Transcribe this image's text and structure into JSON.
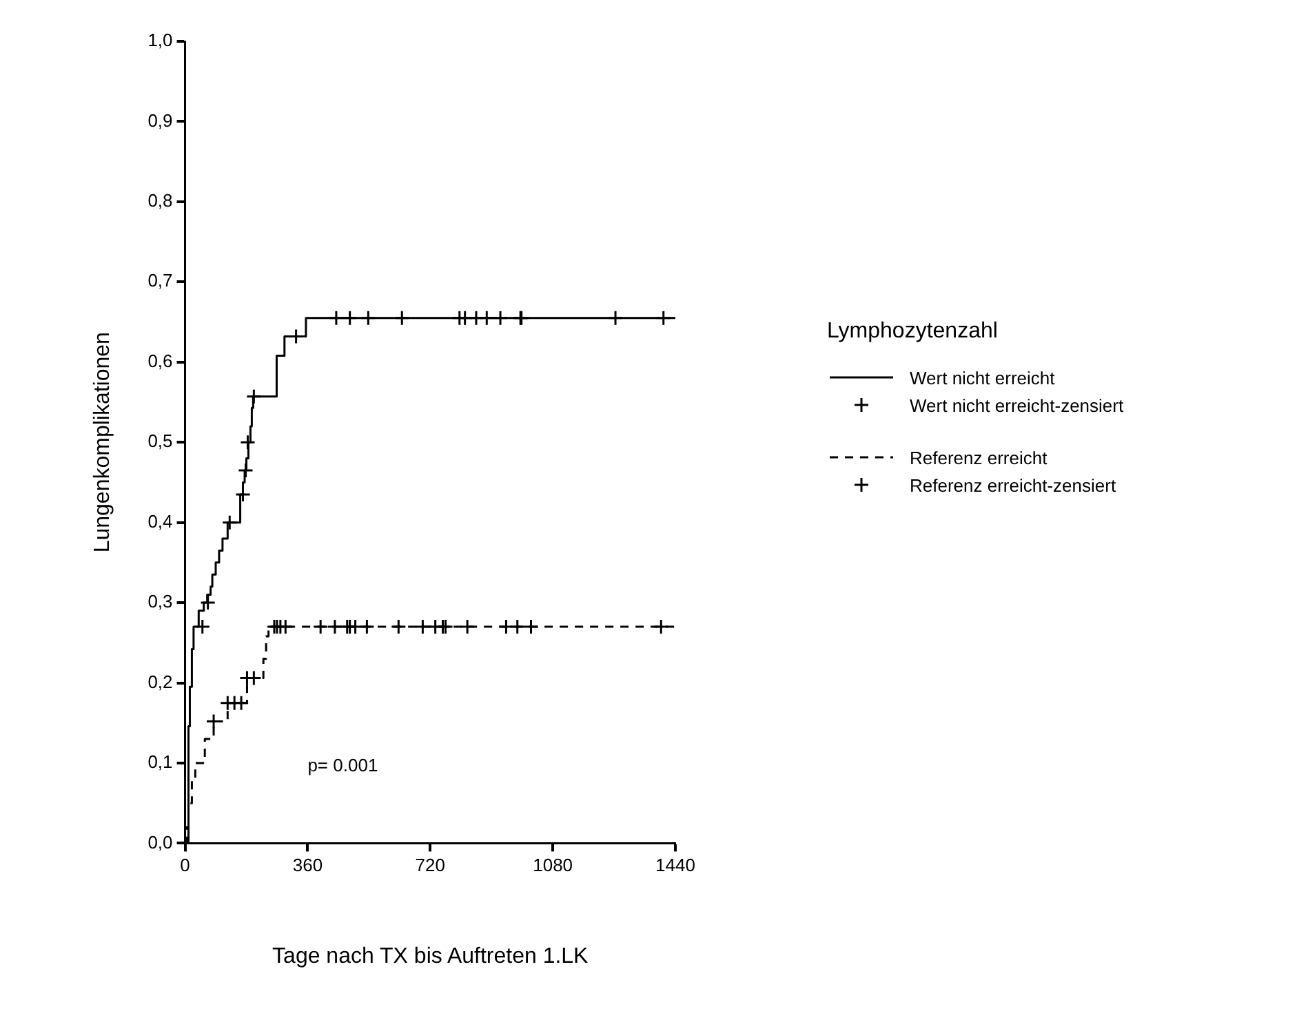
{
  "chart_data": {
    "type": "step",
    "xlabel": "Tage nach TX bis Auftreten 1.LK",
    "ylabel": "Lungenkomplikationen",
    "legend_title": "Lymphozytenzahl",
    "legend": "right",
    "xlim": [
      0,
      1440
    ],
    "xticks": [
      0,
      360,
      720,
      1080,
      1440
    ],
    "ylim": [
      0,
      1
    ],
    "yticks": [
      {
        "value": 0,
        "label": "0,0"
      },
      {
        "value": 0.1,
        "label": "0,1"
      },
      {
        "value": 0.2,
        "label": "0,2"
      },
      {
        "value": 0.3,
        "label": "0,3"
      },
      {
        "value": 0.4,
        "label": "0,4"
      },
      {
        "value": 0.5,
        "label": "0,5"
      },
      {
        "value": 0.6,
        "label": "0,6"
      },
      {
        "value": 0.7,
        "label": "0,7"
      },
      {
        "value": 0.8,
        "label": "0,8"
      },
      {
        "value": 0.9,
        "label": "0,9"
      },
      {
        "value": 1,
        "label": "1,0"
      }
    ],
    "grid": false,
    "annotations": [
      "p= 0.001"
    ],
    "series": [
      {
        "name": "Wert nicht erreicht",
        "color": "#000000",
        "line_style": "solid",
        "marker": "none",
        "x": [
          0,
          10,
          14,
          20,
          25,
          40,
          55,
          65,
          75,
          80,
          90,
          100,
          110,
          125,
          162,
          170,
          175,
          180,
          186,
          192,
          196,
          200,
          269,
          292,
          355,
          1440
        ],
        "values": [
          0,
          0.146,
          0.195,
          0.242,
          0.27,
          0.29,
          0.3,
          0.31,
          0.32,
          0.335,
          0.35,
          0.365,
          0.38,
          0.4,
          0.435,
          0.45,
          0.465,
          0.48,
          0.5,
          0.52,
          0.543,
          0.557,
          0.608,
          0.632,
          0.655,
          0.655
        ]
      },
      {
        "name": "Wert nicht erreicht-zensiert",
        "type": "scatter",
        "color": "#000000",
        "marker": "cross",
        "x": [
          51,
          67,
          131,
          170,
          178,
          184,
          202,
          326,
          444,
          484,
          538,
          637,
          806,
          822,
          855,
          886,
          926,
          985,
          988,
          1264,
          1405
        ],
        "values": [
          0.27,
          0.3,
          0.4,
          0.435,
          0.465,
          0.5,
          0.557,
          0.632,
          0.655,
          0.655,
          0.655,
          0.655,
          0.655,
          0.655,
          0.655,
          0.655,
          0.655,
          0.655,
          0.655,
          0.655,
          0.655
        ]
      },
      {
        "name": "Referenz erreicht",
        "color": "#000000",
        "line_style": "dashed",
        "marker": "none",
        "x": [
          0,
          5,
          10,
          20,
          30,
          58,
          84,
          125,
          182,
          230,
          238,
          245,
          1440
        ],
        "values": [
          0,
          0.02,
          0.05,
          0.08,
          0.1,
          0.13,
          0.152,
          0.175,
          0.206,
          0.23,
          0.258,
          0.27,
          0.27
        ]
      },
      {
        "name": "Referenz erreicht-zensiert",
        "type": "scatter",
        "color": "#000000",
        "marker": "cross",
        "x": [
          84,
          125,
          145,
          165,
          182,
          202,
          262,
          270,
          280,
          295,
          398,
          440,
          476,
          484,
          500,
          534,
          627,
          698,
          735,
          757,
          765,
          829,
          943,
          976,
          1016,
          1398
        ],
        "values": [
          0.152,
          0.175,
          0.175,
          0.175,
          0.206,
          0.206,
          0.27,
          0.27,
          0.27,
          0.27,
          0.27,
          0.27,
          0.27,
          0.27,
          0.27,
          0.27,
          0.27,
          0.27,
          0.27,
          0.27,
          0.27,
          0.27,
          0.27,
          0.27,
          0.27,
          0.27
        ]
      }
    ]
  }
}
